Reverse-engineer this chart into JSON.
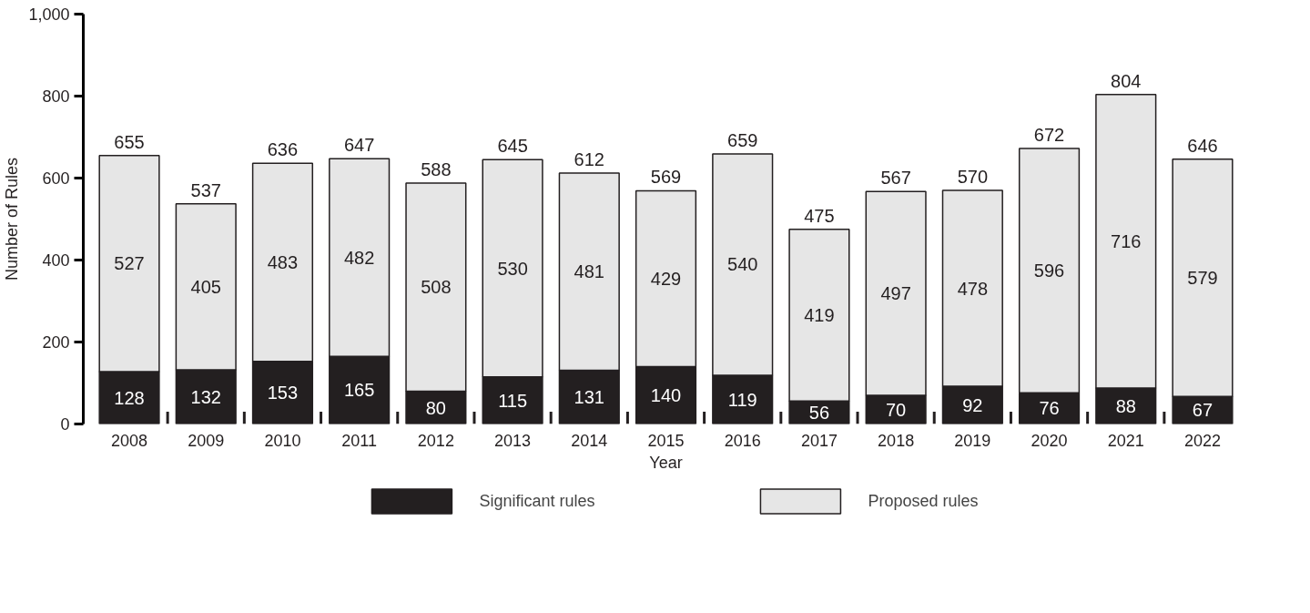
{
  "chart_data": {
    "type": "bar",
    "stacked": true,
    "xlabel": "Year",
    "ylabel": "Number of Rules",
    "categories": [
      "2008",
      "2009",
      "2010",
      "2011",
      "2012",
      "2013",
      "2014",
      "2015",
      "2016",
      "2017",
      "2018",
      "2019",
      "2020",
      "2021",
      "2022"
    ],
    "series": [
      {
        "name": "Significant rules",
        "color": "#231f20",
        "values": [
          128,
          132,
          153,
          165,
          80,
          115,
          131,
          140,
          119,
          56,
          70,
          92,
          76,
          88,
          67
        ]
      },
      {
        "name": "Proposed rules",
        "color": "#e6e6e6",
        "values": [
          527,
          405,
          483,
          482,
          508,
          530,
          481,
          429,
          540,
          419,
          497,
          478,
          596,
          716,
          579
        ]
      }
    ],
    "totals": [
      "655",
      "537",
      "636",
      "647",
      "588",
      "645",
      "612",
      "569",
      "659",
      "475",
      "567",
      "570",
      "672",
      "804",
      "646"
    ],
    "data_labels": true,
    "ylim": [
      0,
      1000
    ],
    "yticks": [
      0,
      200,
      400,
      600,
      800,
      {
        "value": 1000,
        "label": "1,000"
      }
    ],
    "grid": false,
    "legend": "bottom"
  }
}
